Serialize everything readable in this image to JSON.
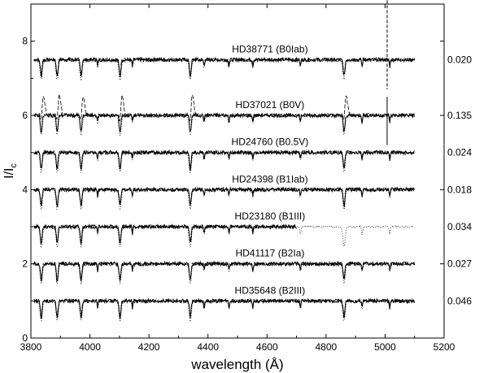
{
  "chart_data": {
    "type": "line",
    "xlabel": "wavelength (Å)",
    "ylabel_main": "I/I",
    "ylabel_sub": "c",
    "xlim": [
      3800,
      5200
    ],
    "ylim": [
      0,
      9
    ],
    "x_ticks": [
      3800,
      4000,
      4200,
      4400,
      4600,
      4800,
      5000,
      5200
    ],
    "y_ticks": [
      0,
      2,
      4,
      6,
      8
    ],
    "grid": false,
    "line_styles": [
      "solid",
      "dashed",
      "dotted"
    ],
    "wavelength_range": [
      3810,
      5100
    ],
    "absorption_lines": [
      3835,
      3889,
      3970,
      4026,
      4102,
      4144,
      4340,
      4387,
      4471,
      4552,
      4713,
      4861,
      4922,
      5016
    ],
    "series": [
      {
        "label": "HD38771 (B0Iab)",
        "continuum": 7.5,
        "rms": "0.020",
        "emission": false,
        "dotted_to": 5100,
        "spike_x": 5007
      },
      {
        "label": "HD37021 (B0V)",
        "continuum": 6.0,
        "rms": "0.135",
        "emission": true,
        "dotted_to": 5100,
        "spike_x": 5007
      },
      {
        "label": "HD24760 (B0.5V)",
        "continuum": 5.0,
        "rms": "0.024",
        "emission": false,
        "dotted_to": 5100
      },
      {
        "label": "HD24398 (B1Iab)",
        "continuum": 4.0,
        "rms": "0.018",
        "emission": false,
        "dotted_to": 5100
      },
      {
        "label": "HD23180 (B1III)",
        "continuum": 3.0,
        "rms": "0.034",
        "emission": false,
        "dotted_to": 5100,
        "solid_to": 4700
      },
      {
        "label": "HD41117 (B2Ia)",
        "continuum": 2.0,
        "rms": "0.027",
        "emission": false,
        "dotted_to": 5100
      },
      {
        "label": "HD35648 (B2III)",
        "continuum": 1.0,
        "rms": "0.046",
        "emission": false,
        "dotted_to": 5100
      }
    ]
  }
}
